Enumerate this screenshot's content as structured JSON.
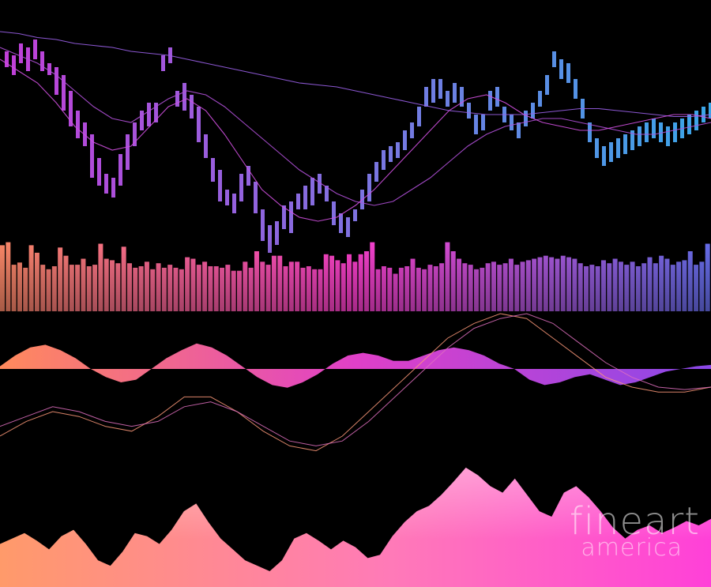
{
  "chart_data": [
    {
      "type": "candlestick",
      "panel": "price",
      "colors": {
        "start": "#c040d8",
        "end": "#3aa6e8"
      },
      "ylim": [
        0,
        100
      ],
      "bars": [
        [
          78,
          86
        ],
        [
          74,
          84
        ],
        [
          80,
          90
        ],
        [
          76,
          88
        ],
        [
          82,
          92
        ],
        [
          76,
          86
        ],
        [
          74,
          80
        ],
        [
          64,
          78
        ],
        [
          56,
          74
        ],
        [
          48,
          66
        ],
        [
          42,
          56
        ],
        [
          38,
          50
        ],
        [
          22,
          44
        ],
        [
          18,
          32
        ],
        [
          14,
          24
        ],
        [
          12,
          22
        ],
        [
          18,
          34
        ],
        [
          26,
          44
        ],
        [
          38,
          50
        ],
        [
          46,
          56
        ],
        [
          48,
          60
        ],
        [
          50,
          60
        ],
        [
          76,
          84
        ],
        [
          80,
          88
        ],
        [
          58,
          66
        ],
        [
          56,
          70
        ],
        [
          52,
          64
        ],
        [
          40,
          58
        ],
        [
          32,
          44
        ],
        [
          20,
          32
        ],
        [
          10,
          26
        ],
        [
          8,
          16
        ],
        [
          4,
          14
        ],
        [
          10,
          24
        ],
        [
          18,
          28
        ],
        [
          4,
          20
        ],
        [
          -10,
          6
        ],
        [
          -16,
          -2
        ],
        [
          -12,
          0
        ],
        [
          -4,
          8
        ],
        [
          -6,
          10
        ],
        [
          6,
          14
        ],
        [
          6,
          18
        ],
        [
          8,
          22
        ],
        [
          14,
          24
        ],
        [
          10,
          18
        ],
        [
          -2,
          10
        ],
        [
          -6,
          4
        ],
        [
          -8,
          2
        ],
        [
          0,
          6
        ],
        [
          6,
          16
        ],
        [
          10,
          24
        ],
        [
          20,
          30
        ],
        [
          26,
          36
        ],
        [
          30,
          38
        ],
        [
          32,
          40
        ],
        [
          36,
          46
        ],
        [
          42,
          50
        ],
        [
          48,
          58
        ],
        [
          58,
          68
        ],
        [
          60,
          72
        ],
        [
          62,
          72
        ],
        [
          58,
          66
        ],
        [
          60,
          70
        ],
        [
          58,
          68
        ],
        [
          52,
          60
        ],
        [
          44,
          54
        ],
        [
          46,
          54
        ],
        [
          56,
          66
        ],
        [
          58,
          68
        ],
        [
          50,
          58
        ],
        [
          46,
          54
        ],
        [
          42,
          50
        ],
        [
          48,
          56
        ],
        [
          52,
          60
        ],
        [
          58,
          66
        ],
        [
          64,
          74
        ],
        [
          78,
          86
        ],
        [
          72,
          82
        ],
        [
          70,
          80
        ],
        [
          62,
          72
        ],
        [
          52,
          62
        ],
        [
          40,
          50
        ],
        [
          32,
          42
        ],
        [
          28,
          38
        ],
        [
          30,
          40
        ],
        [
          32,
          42
        ],
        [
          34,
          44
        ],
        [
          36,
          46
        ],
        [
          38,
          48
        ],
        [
          40,
          50
        ],
        [
          42,
          52
        ],
        [
          40,
          50
        ],
        [
          38,
          48
        ],
        [
          40,
          50
        ],
        [
          42,
          52
        ],
        [
          44,
          54
        ],
        [
          46,
          56
        ],
        [
          50,
          58
        ],
        [
          52,
          60
        ]
      ],
      "moving_averages": [
        {
          "values": [
            96,
            95,
            93,
            92,
            90,
            89,
            88,
            86,
            85,
            84,
            82,
            80,
            78,
            76,
            74,
            72,
            70,
            69,
            68,
            66,
            64,
            62,
            60,
            58,
            56,
            55,
            54,
            54,
            54,
            55,
            56,
            57,
            57,
            56,
            55,
            54,
            53,
            53,
            54
          ]
        },
        {
          "values": [
            88,
            84,
            80,
            74,
            66,
            58,
            52,
            50,
            56,
            62,
            66,
            64,
            58,
            50,
            42,
            34,
            26,
            20,
            14,
            10,
            8,
            10,
            16,
            22,
            30,
            38,
            44,
            48,
            50,
            52,
            52,
            50,
            48,
            46,
            44,
            44,
            46,
            48,
            50
          ]
        },
        {
          "values": [
            82,
            76,
            70,
            60,
            48,
            40,
            36,
            38,
            48,
            58,
            62,
            56,
            44,
            30,
            16,
            8,
            2,
            0,
            2,
            8,
            16,
            26,
            36,
            46,
            56,
            62,
            64,
            60,
            54,
            50,
            48,
            46,
            46,
            48,
            50,
            52,
            54,
            54,
            52
          ]
        }
      ]
    },
    {
      "type": "bar",
      "panel": "volume",
      "colors": {
        "start": "#ff8a6a",
        "mid": "#ff40d0",
        "end": "#6a70f0"
      },
      "values": [
        88,
        92,
        62,
        65,
        58,
        88,
        78,
        62,
        56,
        60,
        85,
        74,
        62,
        62,
        70,
        60,
        62,
        90,
        70,
        68,
        64,
        86,
        64,
        58,
        60,
        66,
        56,
        64,
        58,
        62,
        58,
        56,
        72,
        70,
        62,
        66,
        60,
        60,
        58,
        62,
        54,
        54,
        66,
        58,
        80,
        66,
        62,
        74,
        74,
        60,
        66,
        66,
        58,
        60,
        56,
        56,
        76,
        74,
        68,
        64,
        76,
        66,
        76,
        80,
        92,
        56,
        60,
        58,
        50,
        58,
        60,
        70,
        58,
        56,
        62,
        60,
        64,
        92,
        80,
        70,
        64,
        62,
        56,
        58,
        64,
        66,
        62,
        64,
        70,
        62,
        66,
        68,
        70,
        72,
        74,
        72,
        70,
        74,
        72,
        70,
        64,
        60,
        62,
        60,
        68,
        64,
        70,
        66,
        62,
        66,
        60,
        64,
        72,
        64,
        74,
        70,
        62,
        66,
        68,
        80,
        62,
        66,
        90
      ]
    },
    {
      "type": "area",
      "panel": "oscillator",
      "colors": {
        "start": "#ff8a5c",
        "mid": "#e040c8",
        "end": "#8a48e8",
        "lines": "#ff9a7a"
      },
      "histogram": [
        0.1,
        0.5,
        0.8,
        0.9,
        0.7,
        0.4,
        0.0,
        -0.3,
        -0.5,
        -0.4,
        0.0,
        0.4,
        0.7,
        0.95,
        0.8,
        0.5,
        0.1,
        -0.3,
        -0.6,
        -0.7,
        -0.5,
        -0.2,
        0.2,
        0.5,
        0.6,
        0.5,
        0.3,
        0.3,
        0.5,
        0.7,
        0.8,
        0.7,
        0.5,
        0.2,
        0.0,
        -0.4,
        -0.6,
        -0.5,
        -0.3,
        -0.2,
        -0.4,
        -0.6,
        -0.5,
        -0.3,
        -0.1,
        0.0,
        0.1,
        0.15
      ],
      "lines": [
        {
          "values": [
            -1.0,
            -0.7,
            -0.5,
            -0.6,
            -0.8,
            -0.9,
            -0.6,
            -0.2,
            -0.2,
            -0.5,
            -0.9,
            -1.2,
            -1.3,
            -1.0,
            -0.5,
            0.0,
            0.5,
            1.0,
            1.3,
            1.5,
            1.4,
            1.0,
            0.6,
            0.2,
            0.0,
            -0.1,
            -0.1,
            0.0
          ]
        },
        {
          "values": [
            -0.8,
            -0.6,
            -0.4,
            -0.5,
            -0.7,
            -0.8,
            -0.7,
            -0.4,
            -0.3,
            -0.5,
            -0.8,
            -1.1,
            -1.2,
            -1.1,
            -0.7,
            -0.2,
            0.3,
            0.8,
            1.2,
            1.4,
            1.5,
            1.3,
            0.9,
            0.5,
            0.2,
            0.0,
            -0.05,
            0.0
          ]
        }
      ]
    },
    {
      "type": "area",
      "panel": "mirrored-mountain",
      "colors": {
        "start": "#ff9a6a",
        "mid": "#ff7ab8",
        "end": "#ff40d8"
      },
      "values": [
        0.25,
        0.3,
        0.35,
        0.28,
        0.2,
        0.32,
        0.38,
        0.25,
        0.1,
        0.05,
        0.18,
        0.35,
        0.32,
        0.25,
        0.38,
        0.55,
        0.62,
        0.45,
        0.3,
        0.2,
        0.1,
        0.05,
        0.0,
        0.1,
        0.3,
        0.35,
        0.28,
        0.2,
        0.28,
        0.22,
        0.12,
        0.15,
        0.32,
        0.45,
        0.55,
        0.6,
        0.7,
        0.82,
        0.95,
        0.88,
        0.78,
        0.72,
        0.85,
        0.7,
        0.55,
        0.5,
        0.72,
        0.78,
        0.68,
        0.55,
        0.4,
        0.3,
        0.38,
        0.42,
        0.35,
        0.4,
        0.46,
        0.42,
        0.48
      ]
    }
  ],
  "watermark": {
    "line1": "fineart",
    "line2": "america"
  }
}
